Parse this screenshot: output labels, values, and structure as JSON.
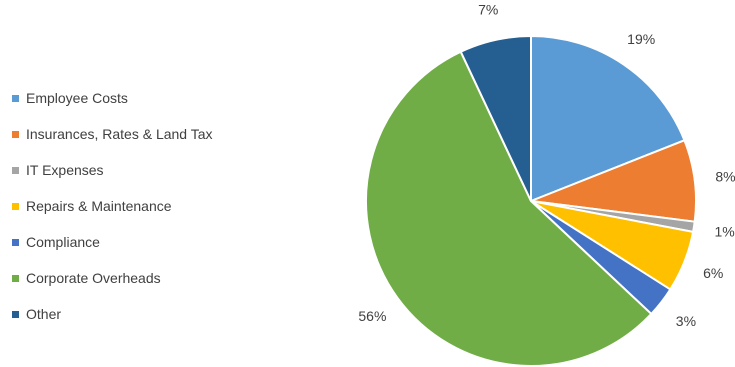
{
  "chart_data": {
    "type": "pie",
    "title": "",
    "legend_position": "left",
    "slices": [
      {
        "label": "Employee Costs",
        "value": 19,
        "value_label": "19%",
        "color": "#5B9BD5"
      },
      {
        "label": "Insurances, Rates & Land Tax",
        "value": 8,
        "value_label": "8%",
        "color": "#ED7D31"
      },
      {
        "label": "IT Expenses",
        "value": 1,
        "value_label": "1%",
        "color": "#A5A5A5"
      },
      {
        "label": "Repairs & Maintenance",
        "value": 6,
        "value_label": "6%",
        "color": "#FFC000"
      },
      {
        "label": "Compliance",
        "value": 3,
        "value_label": "3%",
        "color": "#4472C4"
      },
      {
        "label": "Corporate Overheads",
        "value": 56,
        "value_label": "56%",
        "color": "#70AD47"
      },
      {
        "label": "Other",
        "value": 7,
        "value_label": "7%",
        "color": "#255E91"
      }
    ]
  }
}
